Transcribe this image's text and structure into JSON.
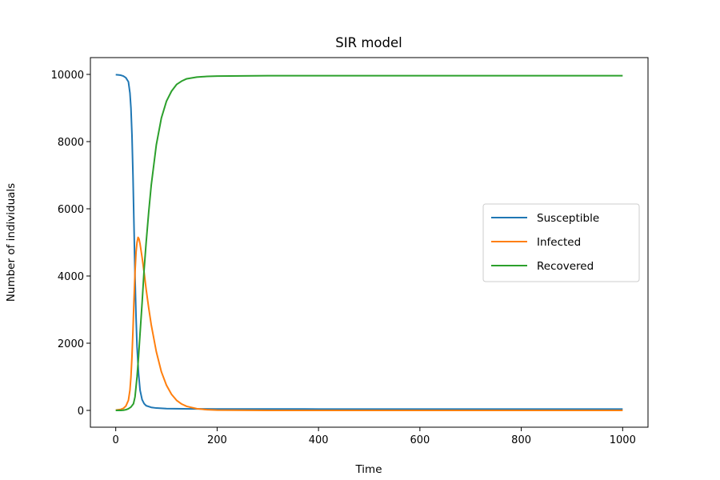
{
  "chart_data": {
    "type": "line",
    "title": "SIR model",
    "xlabel": "Time",
    "ylabel": "Number of individuals",
    "xlim": [
      -50,
      1050
    ],
    "ylim": [
      -500,
      10500
    ],
    "xticks": [
      0,
      200,
      400,
      600,
      800,
      1000
    ],
    "yticks": [
      0,
      2000,
      4000,
      6000,
      8000,
      10000
    ],
    "grid": false,
    "legend_position": "center-right",
    "series": [
      {
        "name": "Susceptible",
        "color": "#1f77b4",
        "points": [
          [
            0,
            9990
          ],
          [
            5,
            9985
          ],
          [
            10,
            9975
          ],
          [
            15,
            9950
          ],
          [
            20,
            9900
          ],
          [
            25,
            9780
          ],
          [
            28,
            9450
          ],
          [
            30,
            9000
          ],
          [
            32,
            8200
          ],
          [
            34,
            7000
          ],
          [
            36,
            5500
          ],
          [
            38,
            4000
          ],
          [
            40,
            2800
          ],
          [
            42,
            1900
          ],
          [
            45,
            1100
          ],
          [
            48,
            600
          ],
          [
            52,
            320
          ],
          [
            56,
            200
          ],
          [
            60,
            140
          ],
          [
            70,
            90
          ],
          [
            80,
            70
          ],
          [
            100,
            55
          ],
          [
            150,
            45
          ],
          [
            200,
            42
          ],
          [
            400,
            40
          ],
          [
            600,
            40
          ],
          [
            800,
            40
          ],
          [
            1000,
            40
          ]
        ]
      },
      {
        "name": "Infected",
        "color": "#ff7f0e",
        "points": [
          [
            0,
            10
          ],
          [
            10,
            30
          ],
          [
            15,
            60
          ],
          [
            20,
            130
          ],
          [
            25,
            300
          ],
          [
            28,
            600
          ],
          [
            30,
            1000
          ],
          [
            32,
            1600
          ],
          [
            34,
            2400
          ],
          [
            36,
            3300
          ],
          [
            38,
            4100
          ],
          [
            40,
            4700
          ],
          [
            42,
            5000
          ],
          [
            44,
            5150
          ],
          [
            46,
            5100
          ],
          [
            48,
            4950
          ],
          [
            52,
            4550
          ],
          [
            56,
            4100
          ],
          [
            60,
            3600
          ],
          [
            65,
            3050
          ],
          [
            70,
            2550
          ],
          [
            80,
            1750
          ],
          [
            90,
            1150
          ],
          [
            100,
            750
          ],
          [
            110,
            480
          ],
          [
            120,
            300
          ],
          [
            130,
            190
          ],
          [
            140,
            120
          ],
          [
            160,
            50
          ],
          [
            180,
            20
          ],
          [
            200,
            8
          ],
          [
            300,
            0
          ],
          [
            500,
            0
          ],
          [
            1000,
            0
          ]
        ]
      },
      {
        "name": "Recovered",
        "color": "#2ca02c",
        "points": [
          [
            0,
            0
          ],
          [
            10,
            0
          ],
          [
            15,
            5
          ],
          [
            20,
            20
          ],
          [
            25,
            50
          ],
          [
            30,
            100
          ],
          [
            35,
            200
          ],
          [
            38,
            400
          ],
          [
            40,
            700
          ],
          [
            42,
            1000
          ],
          [
            45,
            1600
          ],
          [
            48,
            2300
          ],
          [
            52,
            3200
          ],
          [
            56,
            4200
          ],
          [
            60,
            5000
          ],
          [
            65,
            5900
          ],
          [
            70,
            6700
          ],
          [
            80,
            7900
          ],
          [
            90,
            8700
          ],
          [
            100,
            9200
          ],
          [
            110,
            9500
          ],
          [
            120,
            9700
          ],
          [
            130,
            9800
          ],
          [
            140,
            9870
          ],
          [
            160,
            9920
          ],
          [
            180,
            9940
          ],
          [
            200,
            9950
          ],
          [
            300,
            9960
          ],
          [
            500,
            9960
          ],
          [
            700,
            9960
          ],
          [
            1000,
            9960
          ]
        ]
      }
    ]
  }
}
